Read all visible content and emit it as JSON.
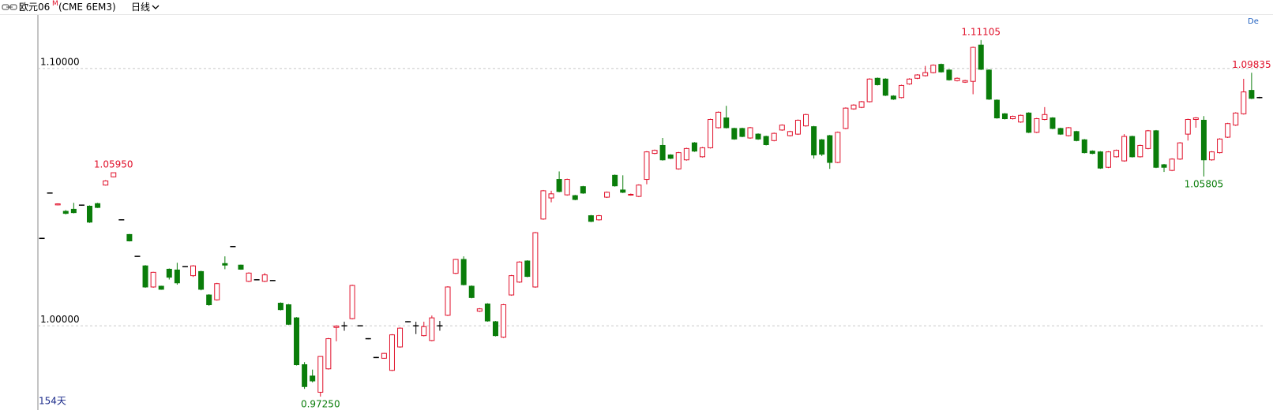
{
  "toolbar": {
    "symbol": "欧元06",
    "marker": "M",
    "code": "(CME 6EM3)",
    "period": "日线",
    "right": "De"
  },
  "chart_data": {
    "type": "candlestick",
    "footnote": "154天",
    "up_color": "#e0102a",
    "down_color": "#0a7d0a",
    "flat_color": "#000000",
    "grid": true,
    "ylim": [
      0.9676,
      1.1208
    ],
    "yticks": [
      {
        "value": 1.0,
        "label": "1.00000"
      },
      {
        "value": 1.1,
        "label": "1.10000"
      }
    ],
    "annotations": [
      {
        "value": 1.0595,
        "label": "1.05950"
      },
      {
        "value": 1.11105,
        "label": "1.11105"
      },
      {
        "value": 1.09835,
        "label": "1.09835"
      },
      {
        "value": 1.05805,
        "label": "1.05805"
      },
      {
        "value": 0.9725,
        "label": "0.97250"
      }
    ],
    "open": [
      1.034,
      1.0516,
      1.047,
      1.0445,
      1.0453,
      1.0469,
      1.0465,
      1.0475,
      1.0547,
      1.0579,
      1.0412,
      1.0355,
      1.027,
      1.0233,
      1.0151,
      1.0154,
      1.022,
      1.0217,
      1.023,
      1.0195,
      1.0211,
      1.012,
      1.0101,
      1.0242,
      1.0308,
      1.0236,
      1.0173,
      1.0179,
      1.0173,
      1.0176,
      1.0088,
      1.0082,
      1.0031,
      0.9849,
      0.9805,
      0.9742,
      0.9833,
      0.9994,
      1.0,
      1.0028,
      1.0,
      0.995,
      0.9877,
      0.9874,
      0.9827,
      0.9918,
      1.0016,
      1.0,
      0.9962,
      0.9943,
      1.0,
      1.0041,
      1.0204,
      1.0258,
      1.0154,
      1.0057,
      1.0085,
      1.0016,
      0.9956,
      1.012,
      1.017,
      1.0252,
      1.0151,
      1.0415,
      1.0497,
      1.0569,
      1.0509,
      1.0506,
      1.0541,
      1.0428,
      1.0412,
      1.05,
      1.0585,
      1.0528,
      1.0509,
      1.0503,
      1.0569,
      1.067,
      1.0701,
      1.0664,
      1.061,
      1.0645,
      1.0711,
      1.0657,
      1.0692,
      1.077,
      1.0808,
      1.0767,
      1.0767,
      1.073,
      1.0745,
      1.0736,
      1.072,
      1.0761,
      1.0739,
      1.0745,
      1.0777,
      1.0774,
      1.0723,
      1.0739,
      1.0635,
      1.0767,
      1.0843,
      1.0849,
      1.0871,
      1.0962,
      1.0959,
      1.0893,
      1.0887,
      1.094,
      1.0962,
      1.0972,
      1.0984,
      1.1016,
      1.0994,
      1.0953,
      1.0947,
      1.095,
      1.1091,
      1.0994,
      1.0877,
      1.0824,
      1.0805,
      1.0792,
      1.0827,
      1.0752,
      1.0802,
      1.0808,
      1.0767,
      1.0739,
      1.0755,
      1.0723,
      1.0679,
      1.0676,
      1.0616,
      1.0657,
      1.0641,
      1.0736,
      1.0657,
      1.0689,
      1.0758,
      1.0626,
      1.0604,
      1.0648,
      1.0745,
      1.0802,
      1.0799,
      1.0645,
      1.0673,
      1.0733,
      1.078,
      1.0824,
      1.0915,
      1.0887
    ],
    "high": [
      1.0342,
      1.0518,
      1.0476,
      1.045,
      1.0478,
      1.0471,
      1.0468,
      1.0478,
      1.0566,
      1.0595,
      1.0414,
      1.0357,
      1.0272,
      1.0236,
      1.021,
      1.0156,
      1.0223,
      1.0245,
      1.0232,
      1.0236,
      1.0214,
      1.0123,
      1.0167,
      1.027,
      1.031,
      1.0238,
      1.0208,
      1.0181,
      1.0205,
      1.0178,
      1.0091,
      1.0085,
      1.0034,
      0.9859,
      0.983,
      0.9881,
      0.9953,
      1.0002,
      1.0016,
      1.016,
      1.0002,
      0.9952,
      0.9879,
      0.9895,
      0.9968,
      0.9994,
      1.0018,
      1.0016,
      1.0016,
      1.004,
      1.0019,
      1.0154,
      1.026,
      1.027,
      1.0157,
      1.0069,
      1.0088,
      1.0019,
      1.0085,
      1.0198,
      1.0251,
      1.0255,
      1.0365,
      1.0528,
      1.0525,
      1.06,
      1.0572,
      1.0509,
      1.0544,
      1.0431,
      1.0431,
      1.0522,
      1.0588,
      1.0585,
      1.0514,
      1.055,
      1.0679,
      1.0685,
      1.073,
      1.0667,
      1.0676,
      1.0692,
      1.0714,
      1.0695,
      1.0805,
      1.0833,
      1.0855,
      1.077,
      1.077,
      1.0773,
      1.0748,
      1.0739,
      1.0751,
      1.0783,
      1.0758,
      1.0802,
      1.0824,
      1.0777,
      1.0726,
      1.0742,
      1.0755,
      1.0849,
      1.0861,
      1.0874,
      1.0962,
      1.0965,
      1.0962,
      1.0896,
      1.0937,
      1.0962,
      1.0978,
      1.101,
      1.1016,
      1.1019,
      1.0997,
      1.0965,
      1.0956,
      1.1085,
      1.11105,
      1.0997,
      1.088,
      1.0827,
      1.0817,
      1.0821,
      1.083,
      1.0808,
      1.085,
      1.0811,
      1.077,
      1.0773,
      1.0758,
      1.0726,
      1.0682,
      1.0679,
      1.0679,
      1.0685,
      1.0745,
      1.0739,
      1.0704,
      1.0761,
      1.0761,
      1.0629,
      1.0651,
      1.0714,
      1.0805,
      1.0811,
      1.0815,
      1.0679,
      1.0729,
      1.0789,
      1.083,
      1.096,
      1.09835,
      1.089
    ],
    "low": [
      1.0338,
      1.0514,
      1.0468,
      1.0433,
      1.0437,
      1.0467,
      1.04,
      1.0458,
      1.0545,
      1.0577,
      1.041,
      1.0328,
      1.0268,
      1.0148,
      1.0148,
      1.014,
      1.018,
      1.016,
      1.0228,
      1.019,
      1.0138,
      1.0078,
      1.0098,
      1.022,
      1.0306,
      1.0218,
      1.017,
      1.0177,
      1.017,
      1.0174,
      1.006,
      1.0003,
      0.9846,
      0.9755,
      0.978,
      0.9725,
      0.983,
      0.994,
      0.9981,
      1.0025,
      0.9998,
      0.9948,
      0.9875,
      0.9872,
      0.9824,
      0.9915,
      1.0014,
      0.9968,
      0.9959,
      0.994,
      0.9981,
      1.0038,
      1.0201,
      1.0157,
      1.0107,
      1.0054,
      1.0016,
      0.9959,
      0.9953,
      1.0117,
      1.0167,
      1.0189,
      1.0148,
      1.0412,
      1.048,
      1.0519,
      1.0506,
      1.0488,
      1.0513,
      1.0403,
      1.0409,
      1.0497,
      1.0541,
      1.0516,
      1.0506,
      1.05,
      1.055,
      1.0667,
      1.0642,
      1.0648,
      1.0607,
      1.0642,
      1.0676,
      1.0654,
      1.0689,
      1.0767,
      1.0767,
      1.0723,
      1.0733,
      1.0727,
      1.0723,
      1.0701,
      1.0717,
      1.0758,
      1.0736,
      1.0742,
      1.0774,
      1.065,
      1.066,
      1.061,
      1.0632,
      1.0764,
      1.084,
      1.0846,
      1.0868,
      1.0934,
      1.0893,
      1.0878,
      1.0884,
      1.0937,
      1.0959,
      1.0969,
      1.0981,
      1.0984,
      1.0953,
      1.095,
      1.0944,
      1.09,
      1.0994,
      1.0878,
      1.0805,
      1.0802,
      1.0802,
      1.0789,
      1.0749,
      1.0749,
      1.0799,
      1.0764,
      1.0742,
      1.0736,
      1.0717,
      1.067,
      1.0667,
      1.061,
      1.0613,
      1.0654,
      1.0638,
      1.0654,
      1.0654,
      1.0686,
      1.0613,
      1.0598,
      1.0601,
      1.0645,
      1.072,
      1.077,
      1.05805,
      1.0642,
      1.067,
      1.073,
      1.0777,
      1.0821,
      1.0881,
      1.0884
    ],
    "close": [
      1.034,
      1.0516,
      1.0474,
      1.0437,
      1.044,
      1.0469,
      1.0403,
      1.046,
      1.0563,
      1.0595,
      1.0412,
      1.033,
      1.027,
      1.0151,
      1.0208,
      1.0142,
      1.0189,
      1.0167,
      1.023,
      1.0233,
      1.0142,
      1.0082,
      1.0164,
      1.0236,
      1.0308,
      1.022,
      1.0205,
      1.0179,
      1.0198,
      1.0176,
      1.0063,
      1.0006,
      0.9849,
      0.9764,
      0.9786,
      0.9881,
      0.995,
      0.9999,
      1.0,
      1.0157,
      1.0,
      0.995,
      0.9877,
      0.9893,
      0.9965,
      0.9991,
      1.0016,
      1.0,
      0.9997,
      1.0031,
      1.0,
      1.0151,
      1.0258,
      1.016,
      1.011,
      1.0066,
      1.0019,
      0.9962,
      1.0082,
      1.0195,
      1.0248,
      1.0192,
      1.0362,
      1.0525,
      1.0513,
      1.0522,
      1.0569,
      1.0491,
      1.0516,
      1.0406,
      1.0428,
      1.0519,
      1.0544,
      1.0519,
      1.0511,
      1.0547,
      1.0676,
      1.0682,
      1.0645,
      1.0651,
      1.0673,
      1.0689,
      1.0679,
      1.0692,
      1.0802,
      1.083,
      1.077,
      1.0726,
      1.0736,
      1.077,
      1.0726,
      1.0704,
      1.0748,
      1.078,
      1.0755,
      1.0799,
      1.0821,
      1.0664,
      1.0667,
      1.0635,
      1.0752,
      1.0846,
      1.0858,
      1.0871,
      1.0959,
      1.0937,
      1.0896,
      1.0881,
      1.0934,
      1.0959,
      1.0975,
      1.0984,
      1.1013,
      1.0987,
      1.0956,
      1.0962,
      1.0953,
      1.1082,
      1.0997,
      1.0881,
      1.0808,
      1.0805,
      1.0814,
      1.0818,
      1.0752,
      1.0805,
      1.0821,
      1.0767,
      1.0745,
      1.077,
      1.072,
      1.0673,
      1.067,
      1.0613,
      1.0676,
      1.0682,
      1.0736,
      1.0657,
      1.0701,
      1.0758,
      1.0616,
      1.0616,
      1.0648,
      1.0711,
      1.0802,
      1.0808,
      1.0645,
      1.0676,
      1.0726,
      1.0786,
      1.0827,
      1.0909,
      1.0884,
      1.0887
    ]
  }
}
